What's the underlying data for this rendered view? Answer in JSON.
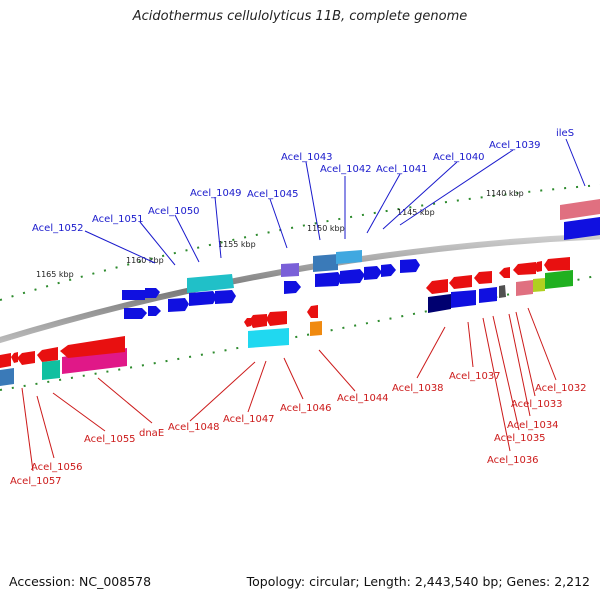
{
  "header": {
    "title": "Acidothermus cellulolyticus 11B, complete genome"
  },
  "footer": {
    "accession": "Accession: NC_008578",
    "summary": "Topology: circular; Length: 2,443,540 bp; Genes: 2,212"
  },
  "colors": {
    "backbone": "#8c8c8c",
    "tick": "#2e8b2e",
    "forward_label": "#1a1acc",
    "reverse_label": "#cc1a1a"
  },
  "scale_labels": [
    "1165 kbp",
    "1160 kbp",
    "1155 kbp",
    "1150 kbp",
    "1145 kbp",
    "1140 kbp"
  ],
  "forward_labels": [
    "Acel_1052",
    "Acel_1051",
    "Acel_1050",
    "Acel_1049",
    "Acel_1045",
    "Acel_1043",
    "Acel_1042",
    "Acel_1041",
    "Acel_1040",
    "Acel_1039",
    "ileS"
  ],
  "reverse_labels": [
    "Acel_1057",
    "Acel_1056",
    "Acel_1055",
    "dnaE",
    "Acel_1048",
    "Acel_1047",
    "Acel_1046",
    "Acel_1044",
    "Acel_1038",
    "Acel_1037",
    "Acel_1036",
    "Acel_1035",
    "Acel_1034",
    "Acel_1033",
    "Acel_1032"
  ]
}
